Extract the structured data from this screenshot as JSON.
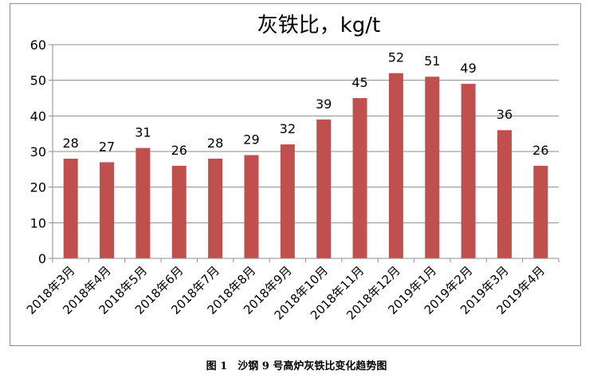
{
  "chart_data": {
    "type": "bar",
    "title": "灰铁比，kg/t",
    "categories": [
      "2018年3月",
      "2018年4月",
      "2018年5月",
      "2018年6月",
      "2018年7月",
      "2018年8月",
      "2018年9月",
      "2018年10月",
      "2018年11月",
      "2018年12月",
      "2019年1月",
      "2019年2月",
      "2019年3月",
      "2019年4月"
    ],
    "values": [
      28,
      27,
      31,
      26,
      28,
      29,
      32,
      39,
      45,
      52,
      51,
      49,
      36,
      26
    ],
    "ylim": [
      0,
      60
    ],
    "yticks": [
      0,
      10,
      20,
      30,
      40,
      50,
      60
    ],
    "bar_color": "#c0504d",
    "grid": true,
    "legend": "none"
  },
  "caption": "图 1　沙钢 9 号高炉灰铁比变化趋势图"
}
